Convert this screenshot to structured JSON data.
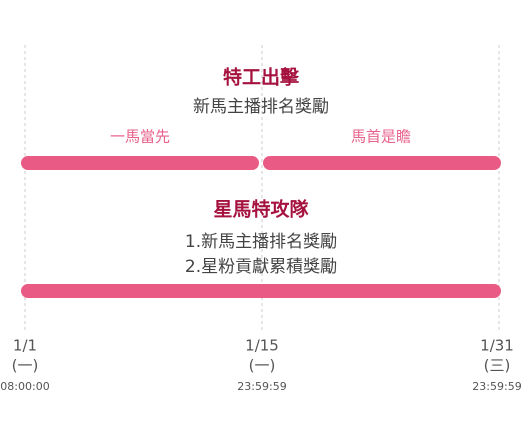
{
  "events": [
    {
      "title": "特工出擊",
      "lines": [
        "新馬主播排名獎勵"
      ],
      "phases": [
        "一馬當先",
        "馬首是瞻"
      ]
    },
    {
      "title": "星馬特攻隊",
      "lines": [
        "1.新馬主播排名獎勵",
        "2.星粉貢獻累積獎勵"
      ]
    }
  ],
  "timeline": [
    {
      "date": "1/1",
      "weekday": "(一)",
      "time": "08:00:00"
    },
    {
      "date": "1/15",
      "weekday": "(一)",
      "time": "23:59:59"
    },
    {
      "date": "1/31",
      "weekday": "(三)",
      "time": "23:59:59"
    }
  ]
}
